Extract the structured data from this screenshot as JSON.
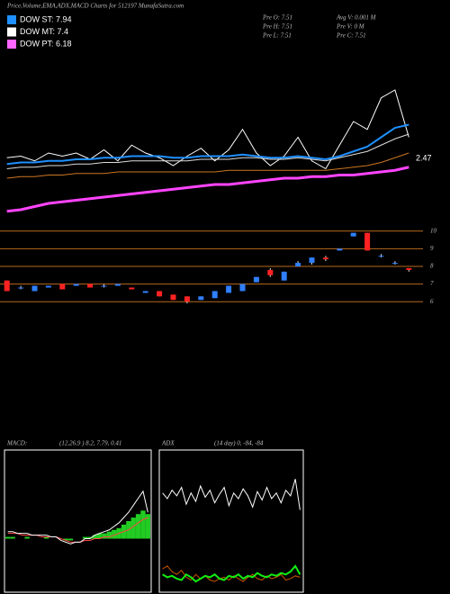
{
  "header": {
    "title": "Price,Volume,EMA,ADX,MACD Charts for 512197 MunafaSutra.com",
    "legend": [
      {
        "label": "DOW ST: 7.94",
        "color": "#1e90ff"
      },
      {
        "label": "DOW MT: 7.4",
        "color": "#ffffff"
      },
      {
        "label": "DOW PT: 6.18",
        "color": "#ff66ff"
      }
    ],
    "stats": [
      "Pre  O: 7.51",
      "Avg V: 0.001  M",
      "Pre  H: 7.51",
      "Pre  V: 0  M",
      "Pre  L: 7.51",
      "Pre  C: 7.51"
    ]
  },
  "chart_data": [
    {
      "type": "line",
      "ylim": [
        0,
        100
      ],
      "annotation": "2.47",
      "series": [
        {
          "color": "#ffffff",
          "width": 1,
          "values": [
            37,
            38,
            35,
            40,
            38,
            40,
            36,
            42,
            35,
            45,
            40,
            37,
            32,
            38,
            43,
            35,
            42,
            55,
            40,
            32,
            38,
            50,
            35,
            30,
            45,
            60,
            55,
            75,
            80,
            50
          ]
        },
        {
          "color": "#1e90ff",
          "width": 2,
          "values": [
            33,
            34,
            34,
            35,
            35,
            36,
            36,
            37,
            37,
            38,
            38,
            38,
            37,
            37,
            38,
            38,
            38,
            39,
            38,
            37,
            37,
            38,
            37,
            36,
            38,
            41,
            44,
            50,
            56,
            58
          ]
        },
        {
          "color": "#dddddd",
          "width": 1,
          "values": [
            30,
            31,
            31,
            32,
            32,
            33,
            33,
            34,
            34,
            35,
            35,
            35,
            35,
            35,
            36,
            36,
            36,
            37,
            37,
            36,
            36,
            37,
            36,
            35,
            37,
            39,
            41,
            45,
            49,
            52
          ]
        },
        {
          "color": "#cc7722",
          "width": 1,
          "values": [
            24,
            25,
            25,
            26,
            26,
            27,
            27,
            27,
            28,
            28,
            28,
            28,
            28,
            28,
            28,
            28,
            29,
            29,
            29,
            29,
            29,
            29,
            29,
            29,
            30,
            31,
            32,
            34,
            37,
            40
          ]
        },
        {
          "color": "#ff44ff",
          "width": 3,
          "values": [
            3,
            4,
            6,
            8,
            9,
            10,
            11,
            12,
            13,
            14,
            15,
            16,
            17,
            18,
            19,
            20,
            20,
            21,
            22,
            23,
            24,
            24,
            25,
            25,
            26,
            26,
            27,
            28,
            29,
            31
          ]
        }
      ]
    },
    {
      "type": "candlestick",
      "ylim": [
        5.5,
        10.6
      ],
      "yticks": [
        10,
        9,
        8,
        7,
        6
      ],
      "up_color": "#2f7fff",
      "down_color": "#ff2222",
      "open": [
        7.2,
        6.8,
        6.6,
        6.8,
        7.0,
        6.9,
        7.0,
        6.9,
        6.9,
        6.8,
        6.5,
        6.6,
        6.4,
        6.3,
        6.1,
        6.2,
        6.5,
        6.6,
        7.1,
        7.8,
        7.2,
        8.0,
        8.2,
        8.5,
        8.9,
        9.7,
        9.9,
        8.6,
        8.2,
        7.9
      ],
      "close": [
        6.6,
        6.8,
        6.9,
        6.9,
        6.7,
        7.0,
        6.8,
        6.9,
        7.0,
        6.7,
        6.6,
        6.3,
        6.1,
        6.0,
        6.3,
        6.6,
        6.9,
        7.0,
        7.4,
        7.5,
        7.7,
        8.2,
        8.5,
        8.4,
        9.0,
        9.9,
        8.9,
        8.6,
        8.2,
        7.8
      ],
      "high": [
        7.2,
        6.9,
        6.9,
        6.9,
        7.0,
        7.0,
        7.0,
        7.0,
        7.0,
        6.8,
        6.6,
        6.6,
        6.4,
        6.3,
        6.3,
        6.6,
        6.9,
        7.0,
        7.4,
        7.9,
        7.7,
        8.3,
        8.5,
        8.6,
        9.0,
        9.9,
        9.9,
        8.7,
        8.3,
        7.9
      ],
      "low": [
        6.6,
        6.7,
        6.6,
        6.8,
        6.7,
        6.9,
        6.8,
        6.8,
        6.9,
        6.7,
        6.5,
        6.3,
        6.1,
        5.9,
        6.1,
        6.2,
        6.5,
        6.6,
        7.1,
        7.4,
        7.2,
        8.0,
        8.1,
        8.3,
        8.9,
        9.7,
        8.9,
        8.5,
        8.1,
        7.7
      ]
    },
    {
      "type": "line",
      "label": "MACD:",
      "params": "(12,26,9 ) 8.2, 7.79, 0.41",
      "ylim": [
        -3,
        5
      ],
      "series": [
        {
          "style": "bar",
          "color": "#22cc22",
          "values": [
            0.1,
            0.1,
            0,
            0,
            0.1,
            0,
            0,
            0,
            0.1,
            0,
            0,
            0,
            -0.1,
            -0.1,
            0,
            0,
            0.1,
            0.1,
            0.2,
            0.3,
            0.3,
            0.4,
            0.5,
            0.6,
            0.8,
            1.0,
            1.2,
            1.4,
            1.6,
            1.4
          ]
        },
        {
          "color": "#ff4444",
          "width": 1,
          "values": [
            0.3,
            0.3,
            0.3,
            0.2,
            0.2,
            0.2,
            0.2,
            0.1,
            0.1,
            0.1,
            0.1,
            0,
            -0.1,
            -0.2,
            -0.2,
            -0.2,
            -0.1,
            -0.1,
            0,
            0,
            0.1,
            0.1,
            0.2,
            0.3,
            0.4,
            0.5,
            0.7,
            0.9,
            1.1,
            1.2
          ]
        },
        {
          "color": "#ffffff",
          "width": 1,
          "values": [
            0.4,
            0.4,
            0.3,
            0.3,
            0.3,
            0.2,
            0.2,
            0.2,
            0.2,
            0.1,
            0.1,
            -0.1,
            -0.2,
            -0.3,
            -0.2,
            -0.2,
            0,
            0,
            0.2,
            0.3,
            0.4,
            0.5,
            0.7,
            0.9,
            1.2,
            1.5,
            1.9,
            2.3,
            2.7,
            1.5
          ]
        }
      ]
    },
    {
      "type": "line",
      "label": "ADX",
      "params": "(14 day) 0, -84, -84",
      "ylim": [
        0,
        100
      ],
      "series": [
        {
          "color": "#ffffff",
          "width": 1,
          "values": [
            70,
            66,
            72,
            68,
            74,
            62,
            70,
            64,
            75,
            67,
            72,
            63,
            69,
            74,
            61,
            70,
            66,
            73,
            68,
            60,
            71,
            65,
            74,
            66,
            70,
            63,
            72,
            68,
            80,
            58
          ]
        },
        {
          "color": "#cc5500",
          "width": 1,
          "values": [
            16,
            18,
            14,
            12,
            15,
            10,
            8,
            12,
            9,
            11,
            8,
            7,
            9,
            10,
            8,
            11,
            9,
            7,
            10,
            12,
            9,
            8,
            11,
            9,
            10,
            12,
            8,
            9,
            11,
            10
          ]
        },
        {
          "color": "#11ee11",
          "width": 2,
          "values": [
            12,
            10,
            11,
            9,
            8,
            12,
            10,
            7,
            9,
            11,
            10,
            12,
            9,
            8,
            11,
            10,
            12,
            9,
            11,
            10,
            13,
            11,
            10,
            12,
            11,
            13,
            12,
            14,
            18,
            12
          ]
        }
      ]
    }
  ]
}
